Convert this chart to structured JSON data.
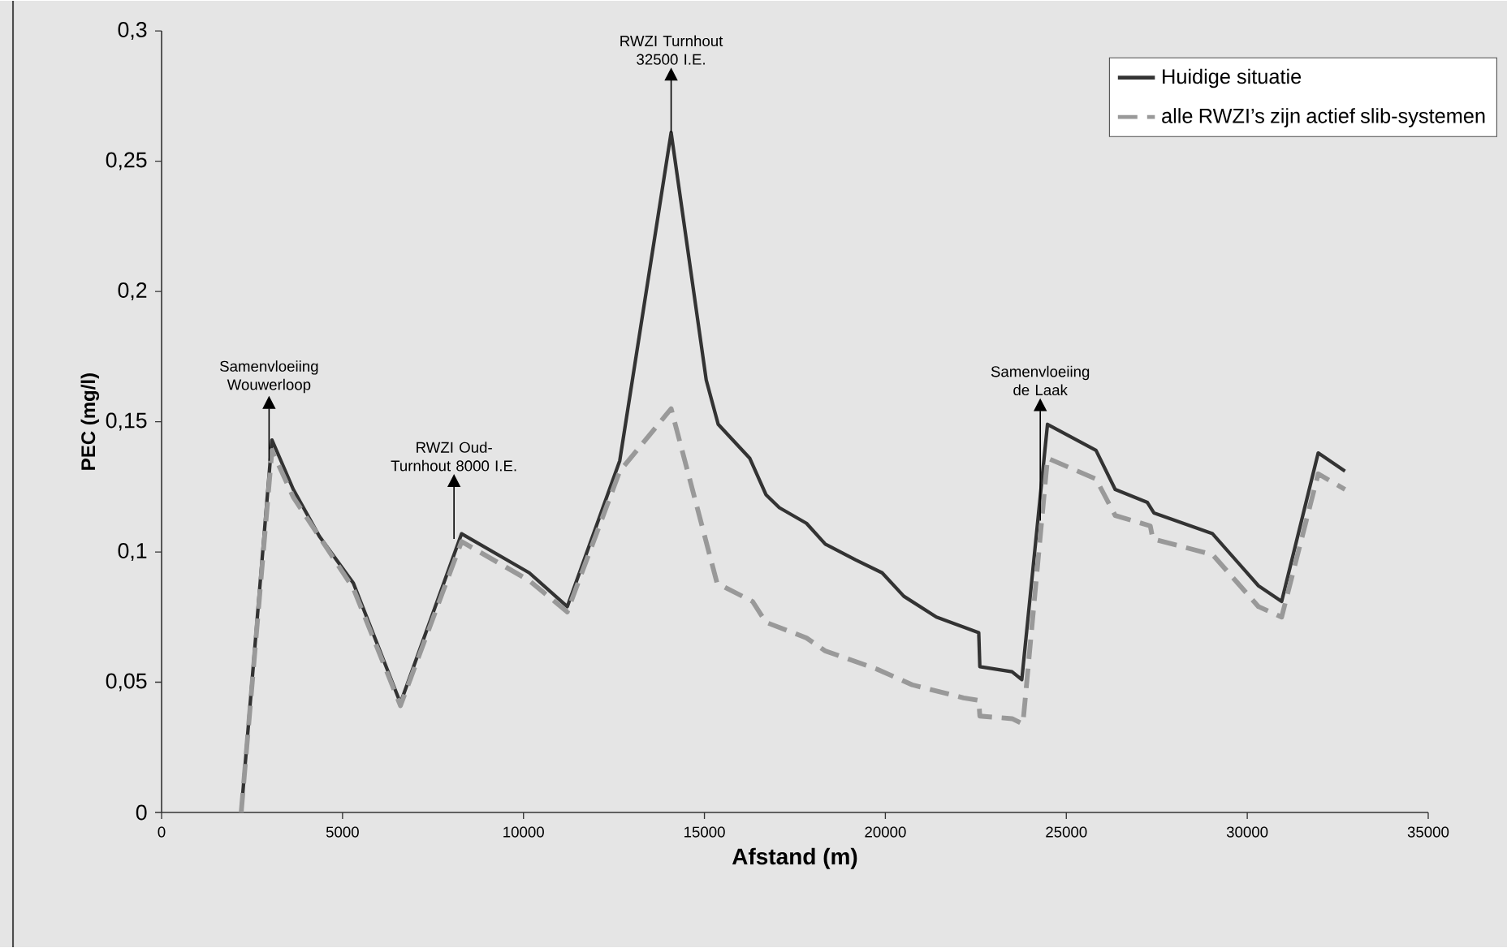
{
  "chart_data": {
    "type": "line",
    "xlabel": "Afstand (m)",
    "ylabel": "PEC (mg/l)",
    "xlim": [
      0,
      35000
    ],
    "xticks": [
      0,
      5000,
      10000,
      15000,
      20000,
      25000,
      30000,
      35000
    ],
    "ylim": [
      0,
      0.3
    ],
    "yticks": [
      {
        "value": 0,
        "label": "0"
      },
      {
        "value": 0.05,
        "label": "0,05"
      },
      {
        "value": 0.1,
        "label": "0,1"
      },
      {
        "value": 0.15,
        "label": "0,15"
      },
      {
        "value": 0.2,
        "label": "0,2"
      },
      {
        "value": 0.25,
        "label": "0,25"
      },
      {
        "value": 0.3,
        "label": "0,3"
      }
    ],
    "legend": "top right",
    "series": [
      {
        "name": "Huidige situatie",
        "color": "#333333",
        "line_style": "solid",
        "x": [
          2200,
          3050,
          3640,
          4360,
          5300,
          6600,
          8290,
          10160,
          11210,
          12660,
          14080,
          15050,
          15380,
          16250,
          16700,
          17070,
          17820,
          18340,
          19170,
          19910,
          20510,
          21410,
          22580,
          22610,
          23500,
          23770,
          24480,
          25820,
          26350,
          27240,
          27420,
          29040,
          30310,
          30950,
          31960,
          32700
        ],
        "values": [
          0,
          0.143,
          0.124,
          0.106,
          0.088,
          0.042,
          0.107,
          0.092,
          0.079,
          0.135,
          0.261,
          0.166,
          0.149,
          0.136,
          0.122,
          0.117,
          0.111,
          0.103,
          0.097,
          0.092,
          0.083,
          0.075,
          0.069,
          0.056,
          0.054,
          0.051,
          0.149,
          0.139,
          0.124,
          0.119,
          0.115,
          0.107,
          0.087,
          0.081,
          0.138,
          0.131
        ]
      },
      {
        "name": "alle RWZI’s zijn actief slib-systemen",
        "color": "#999999",
        "line_style": "dashed",
        "x": [
          2200,
          3050,
          3640,
          5300,
          6600,
          8290,
          10160,
          11210,
          12660,
          14080,
          15350,
          16330,
          16700,
          17820,
          18340,
          19770,
          20740,
          22160,
          22580,
          22610,
          23500,
          23800,
          24480,
          25820,
          26350,
          27320,
          27390,
          29040,
          30310,
          30950,
          31960,
          32700
        ],
        "values": [
          0,
          0.139,
          0.121,
          0.086,
          0.041,
          0.104,
          0.089,
          0.077,
          0.131,
          0.155,
          0.088,
          0.081,
          0.073,
          0.067,
          0.062,
          0.055,
          0.049,
          0.044,
          0.043,
          0.037,
          0.036,
          0.034,
          0.136,
          0.128,
          0.114,
          0.11,
          0.105,
          0.099,
          0.079,
          0.075,
          0.13,
          0.124
        ]
      }
    ],
    "annotations": [
      {
        "text": "Samenvloeiing Wouwerloop",
        "x": 2970,
        "y": 0.135
      },
      {
        "text": "RWZI Oud-Turnhout 8000 I.E.",
        "x": 8080,
        "y": 0.105
      },
      {
        "text": "RWZI Turnhout 32500 I.E.",
        "x": 14080,
        "y": 0.261
      },
      {
        "text": "Samenvloeiing de Laak",
        "x": 24280,
        "y": 0.112
      }
    ]
  }
}
